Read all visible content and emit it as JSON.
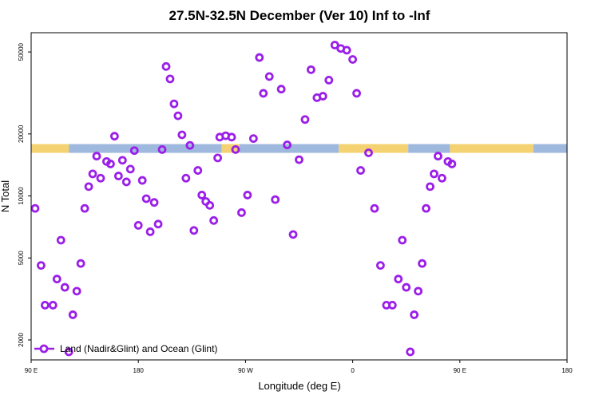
{
  "chart_data": {
    "type": "scatter",
    "title": "27.5N-32.5N December (Ver 10)   Inf to -Inf",
    "xlabel": "Longitude (deg E)",
    "ylabel": "N Total",
    "y_scale": "log",
    "xlim": [
      -90,
      180
    ],
    "ylim": [
      1600,
      62000
    ],
    "x_ticks": [
      {
        "value": -90,
        "label": "90 E"
      },
      {
        "value": -36,
        "label": "180"
      },
      {
        "value": 18,
        "label": "90 W"
      },
      {
        "value": 72,
        "label": "0"
      },
      {
        "value": 126,
        "label": "90 E"
      },
      {
        "value": 180,
        "label": "180"
      }
    ],
    "y_ticks": [
      {
        "value": 2000,
        "label": "2000"
      },
      {
        "value": 5000,
        "label": "5000"
      },
      {
        "value": 10000,
        "label": "10000"
      },
      {
        "value": 20000,
        "label": "20000"
      },
      {
        "value": 50000,
        "label": "50000"
      }
    ],
    "band": {
      "y": 17000,
      "segments": [
        {
          "from": -90,
          "to": -71,
          "color": "#f5d271"
        },
        {
          "from": -71,
          "to": 6,
          "color": "#9fb8de"
        },
        {
          "from": 6,
          "to": 15,
          "color": "#f5d271"
        },
        {
          "from": 15,
          "to": 65,
          "color": "#9fb8de"
        },
        {
          "from": 65,
          "to": 100,
          "color": "#f5d271"
        },
        {
          "from": 100,
          "to": 121,
          "color": "#9fb8de"
        },
        {
          "from": 121,
          "to": 163,
          "color": "#f5d271"
        },
        {
          "from": 163,
          "to": 180,
          "color": "#9fb8de"
        }
      ]
    },
    "series": [
      {
        "name": "Land (Nadir&Glint) and Ocean (Glint)",
        "color": "#9b1fe8",
        "points": [
          [
            -88,
            8700
          ],
          [
            -85,
            4600
          ],
          [
            -83,
            2950
          ],
          [
            -79,
            2950
          ],
          [
            -77,
            3950
          ],
          [
            -75,
            6100
          ],
          [
            -73,
            3600
          ],
          [
            -71,
            1750
          ],
          [
            -69,
            2650
          ],
          [
            -67,
            3450
          ],
          [
            -65,
            4700
          ],
          [
            -63,
            8700
          ],
          [
            -61,
            11100
          ],
          [
            -59,
            12800
          ],
          [
            -57,
            15600
          ],
          [
            -55,
            12200
          ],
          [
            -52,
            14700
          ],
          [
            -50,
            14300
          ],
          [
            -48,
            19500
          ],
          [
            -46,
            12500
          ],
          [
            -44,
            14900
          ],
          [
            -42,
            11700
          ],
          [
            -40,
            13500
          ],
          [
            -38,
            16600
          ],
          [
            -36,
            7200
          ],
          [
            -34,
            11900
          ],
          [
            -32,
            9700
          ],
          [
            -30,
            6700
          ],
          [
            -28,
            9300
          ],
          [
            -26,
            7300
          ],
          [
            -24,
            16800
          ],
          [
            -22,
            42500
          ],
          [
            -20,
            37000
          ],
          [
            -18,
            28000
          ],
          [
            -16,
            24500
          ],
          [
            -14,
            19800
          ],
          [
            -12,
            12200
          ],
          [
            -10,
            17600
          ],
          [
            -8,
            6800
          ],
          [
            -6,
            13300
          ],
          [
            -4,
            10100
          ],
          [
            -2,
            9400
          ],
          [
            0,
            9000
          ],
          [
            2,
            7600
          ],
          [
            4,
            15300
          ],
          [
            5,
            19300
          ],
          [
            8,
            19600
          ],
          [
            11,
            19300
          ],
          [
            13,
            16800
          ],
          [
            16,
            8300
          ],
          [
            19,
            10100
          ],
          [
            22,
            19000
          ],
          [
            25,
            47000
          ],
          [
            27,
            31500
          ],
          [
            30,
            38000
          ],
          [
            33,
            9600
          ],
          [
            36,
            33000
          ],
          [
            39,
            17700
          ],
          [
            42,
            6500
          ],
          [
            45,
            15000
          ],
          [
            48,
            23500
          ],
          [
            51,
            41000
          ],
          [
            54,
            30000
          ],
          [
            57,
            30500
          ],
          [
            60,
            36500
          ],
          [
            63,
            54000
          ],
          [
            66,
            52000
          ],
          [
            69,
            51000
          ],
          [
            72,
            46000
          ],
          [
            74,
            31500
          ],
          [
            76,
            13300
          ],
          [
            80,
            16200
          ],
          [
            83,
            8700
          ],
          [
            86,
            4600
          ],
          [
            89,
            2950
          ],
          [
            92,
            2950
          ],
          [
            95,
            3950
          ],
          [
            97,
            6100
          ],
          [
            99,
            3600
          ],
          [
            101,
            1750
          ],
          [
            103,
            2650
          ],
          [
            105,
            3450
          ],
          [
            107,
            4700
          ],
          [
            109,
            8700
          ],
          [
            111,
            11100
          ],
          [
            113,
            12800
          ],
          [
            115,
            15600
          ],
          [
            117,
            12200
          ],
          [
            120,
            14700
          ],
          [
            122,
            14300
          ]
        ]
      }
    ],
    "legend": {
      "position": "bottom-left",
      "label": "Land (Nadir&Glint) and Ocean (Glint)"
    }
  }
}
